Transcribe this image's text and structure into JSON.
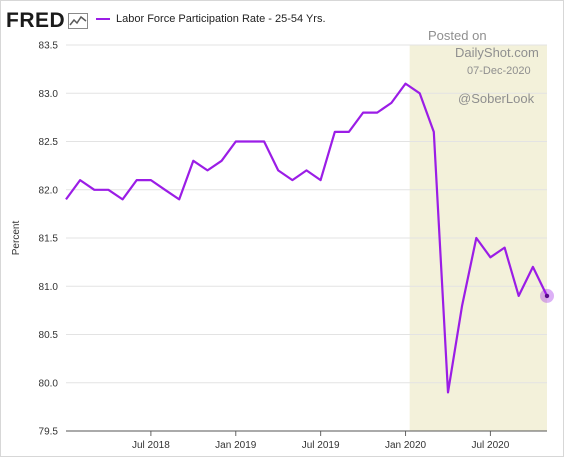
{
  "header": {
    "logo_text": "FRED",
    "logo_icon": "chart-line-icon",
    "legend_label": "Labor Force Participation Rate - 25-54 Yrs."
  },
  "watermark": {
    "line1": "Posted on",
    "line2": "DailyShot.com",
    "line3": "07-Dec-2020",
    "line4": "@SoberLook"
  },
  "colors": {
    "series": "#9b1de6",
    "shade": "#f3f1da",
    "grid": "#e3e3e3"
  },
  "chart_data": {
    "type": "line",
    "title": "",
    "xlabel": "",
    "ylabel": "Percent",
    "ylim": [
      79.5,
      83.5
    ],
    "yticks": [
      "79.5",
      "80.0",
      "80.5",
      "81.0",
      "81.5",
      "82.0",
      "82.5",
      "83.0",
      "83.5"
    ],
    "xticks": [
      "Jul 2018",
      "Jan 2019",
      "Jul 2019",
      "Jan 2020",
      "Jul 2020"
    ],
    "xlim": [
      "2018-01",
      "2020-11"
    ],
    "shaded_region": {
      "start": "2020-02",
      "end": "2020-11"
    },
    "grid": true,
    "series": [
      {
        "name": "Labor Force Participation Rate - 25-54 Yrs.",
        "x": [
          "2018-01",
          "2018-02",
          "2018-03",
          "2018-04",
          "2018-05",
          "2018-06",
          "2018-07",
          "2018-08",
          "2018-09",
          "2018-10",
          "2018-11",
          "2018-12",
          "2019-01",
          "2019-02",
          "2019-03",
          "2019-04",
          "2019-05",
          "2019-06",
          "2019-07",
          "2019-08",
          "2019-09",
          "2019-10",
          "2019-11",
          "2019-12",
          "2020-01",
          "2020-02",
          "2020-03",
          "2020-04",
          "2020-05",
          "2020-06",
          "2020-07",
          "2020-08",
          "2020-09",
          "2020-10",
          "2020-11"
        ],
        "values": [
          81.9,
          82.1,
          82.0,
          82.0,
          81.9,
          82.1,
          82.1,
          82.0,
          81.9,
          82.3,
          82.2,
          82.3,
          82.5,
          82.5,
          82.5,
          82.2,
          82.1,
          82.2,
          82.1,
          82.6,
          82.6,
          82.8,
          82.8,
          82.9,
          83.1,
          83.0,
          82.6,
          79.9,
          80.8,
          81.5,
          81.3,
          81.4,
          80.9,
          81.2,
          80.9
        ]
      }
    ]
  }
}
